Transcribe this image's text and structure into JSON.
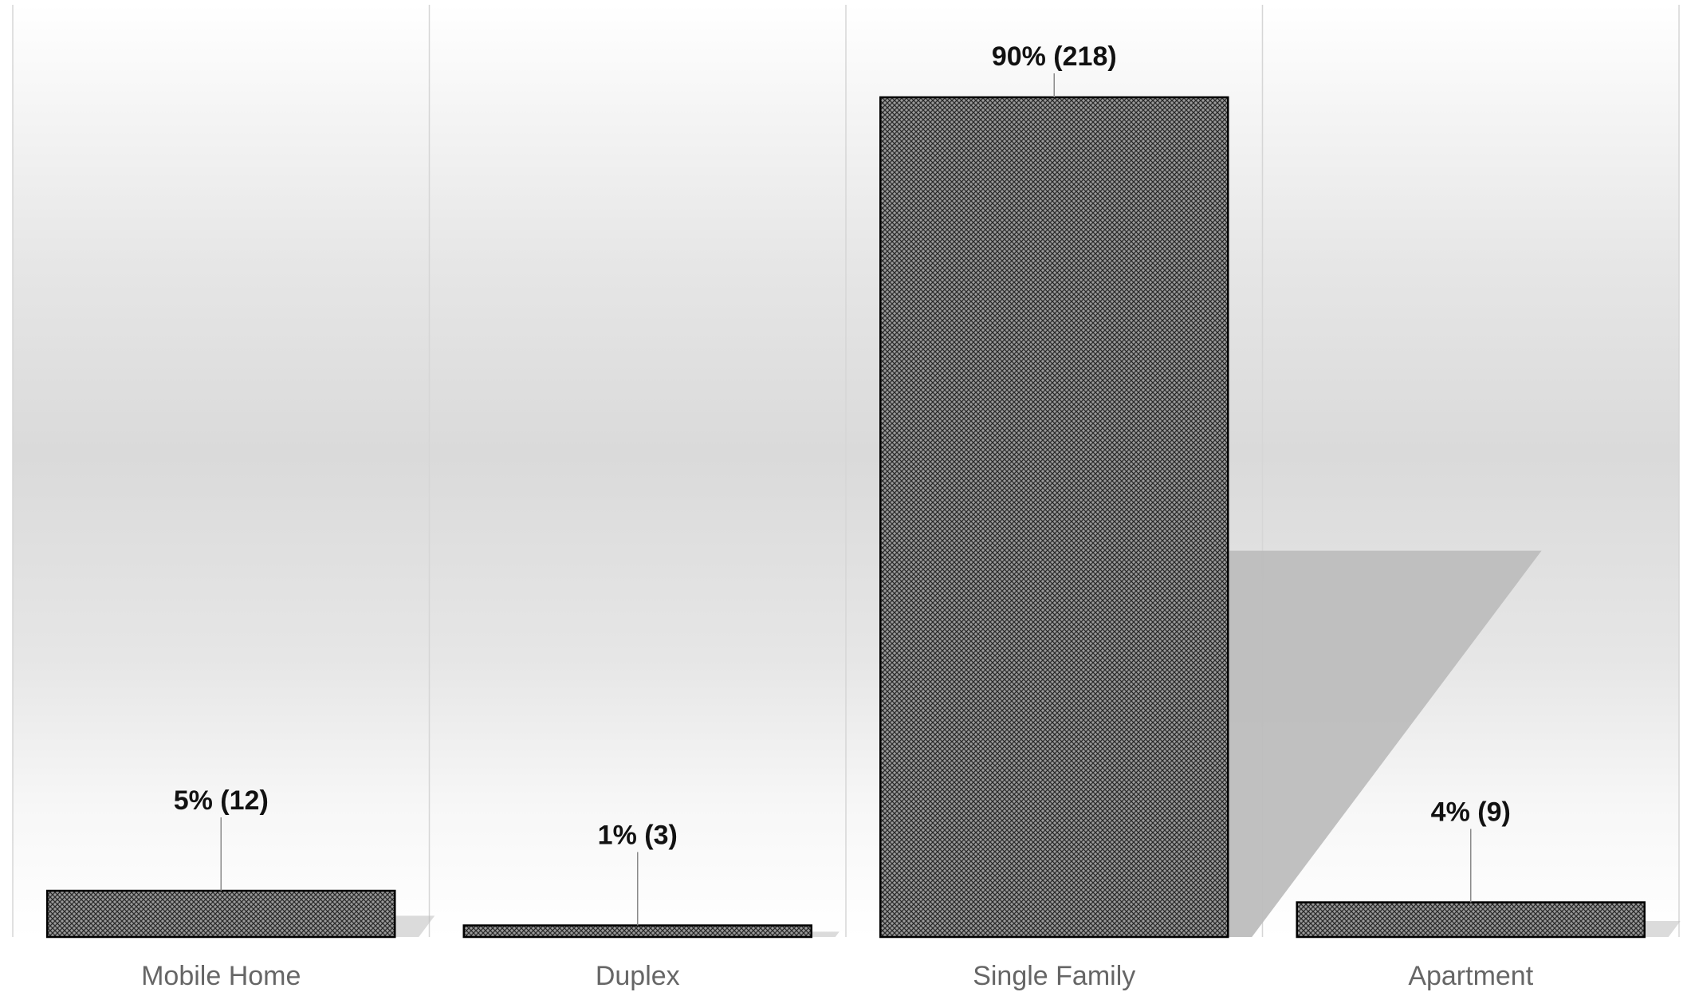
{
  "chart_data": {
    "type": "bar",
    "categories": [
      "Mobile Home",
      "Duplex",
      "Single Family",
      "Apartment"
    ],
    "values": [
      12,
      3,
      218,
      9
    ],
    "data_labels": [
      "5% (12)",
      "1% (3)",
      "90% (218)",
      "4% (9)"
    ],
    "title": "",
    "xlabel": "",
    "ylabel": "",
    "ylim": [
      0,
      225
    ],
    "grid": false,
    "legend": "none",
    "colors": {
      "bar_fill": "#9a9a9a",
      "bar_pattern": "#2a2a2a",
      "bar_stroke": "#000000",
      "divider": "#d6d6d6",
      "leader_line": "#8a8a8a",
      "shadow": "#bdbdbd"
    }
  }
}
